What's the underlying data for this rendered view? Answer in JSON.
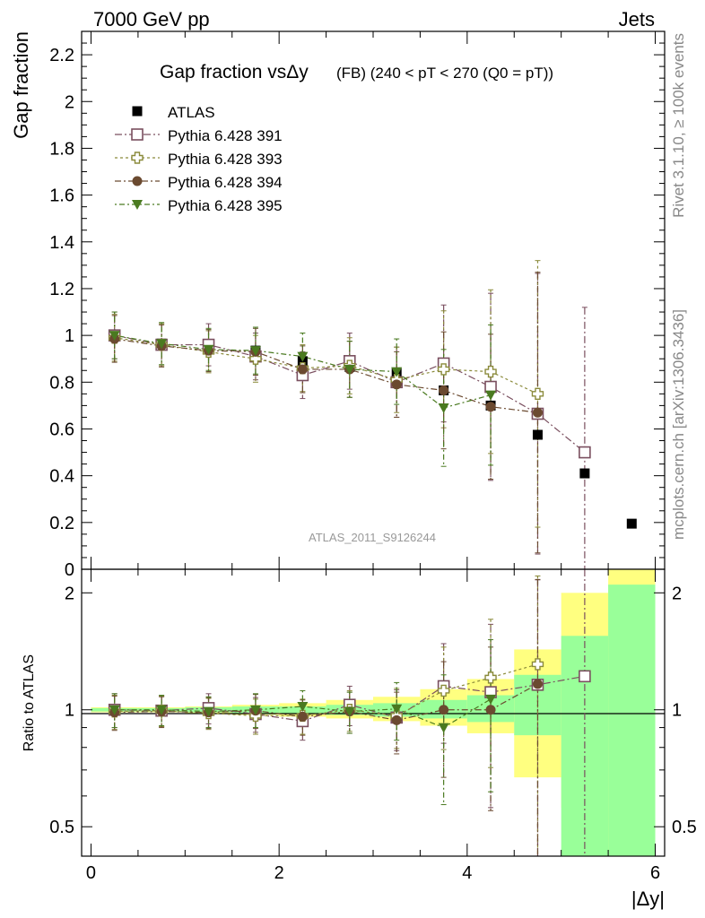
{
  "header": {
    "left": "7000 GeV pp",
    "right": "Jets"
  },
  "side_labels": {
    "rivet": "Rivet 3.1.10, ≥ 100k events",
    "mcplots": "mcplots.cern.ch [arXiv:1306.3436]"
  },
  "chart_data": {
    "type": "scatter",
    "title": "Gap fraction vsΔy",
    "title_suffix": "(FB) (240 < pT < 270 (Q0 = pT))",
    "analysis_label": "ATLAS_2011_S9126244",
    "xlabel": "|Δy|",
    "ylabel_main": "Gap fraction",
    "ylabel_ratio": "Ratio to ATLAS",
    "xlim": [
      -0.1,
      6.1
    ],
    "ylim_main": [
      0,
      2.3
    ],
    "ylim_ratio": [
      0.42,
      2.3
    ],
    "x_ticks": [
      "0",
      "2",
      "4",
      "6"
    ],
    "y_ticks_main": [
      "0",
      "0.2",
      "0.4",
      "0.6",
      "0.8",
      "1",
      "1.2",
      "1.4",
      "1.6",
      "1.8",
      "2",
      "2.2"
    ],
    "y_ticks_ratio": [
      "0.5",
      "1",
      "2"
    ],
    "x": [
      0.25,
      0.75,
      1.25,
      1.75,
      2.25,
      2.75,
      3.25,
      3.75,
      4.25,
      4.75,
      5.25,
      5.75
    ],
    "legend_position": "top-left",
    "bin_edges": [
      0,
      0.5,
      1,
      1.5,
      2,
      2.5,
      3,
      3.5,
      4,
      4.5,
      5,
      5.5,
      6
    ],
    "data_series": {
      "name": "ATLAS",
      "color": "#000000",
      "values": [
        1.0,
        0.965,
        0.95,
        0.935,
        0.89,
        0.865,
        0.84,
        0.765,
        0.7,
        0.575,
        0.41,
        0.195
      ]
    },
    "ratio_bands": {
      "green_lo": [
        0.99,
        0.99,
        0.985,
        0.98,
        0.98,
        0.97,
        0.96,
        0.95,
        0.93,
        0.86,
        0.42,
        0.42
      ],
      "green_hi": [
        1.01,
        1.01,
        1.015,
        1.02,
        1.02,
        1.03,
        1.04,
        1.06,
        1.09,
        1.23,
        1.55,
        2.1
      ],
      "yellow_lo": [
        0.985,
        0.985,
        0.98,
        0.97,
        0.96,
        0.95,
        0.935,
        0.91,
        0.87,
        0.67,
        0.56,
        0.42
      ],
      "yellow_hi": [
        1.015,
        1.015,
        1.02,
        1.03,
        1.04,
        1.06,
        1.08,
        1.13,
        1.2,
        1.43,
        2.0,
        2.3
      ],
      "green_color": "#99ff99",
      "yellow_color": "#ffff80"
    },
    "series": [
      {
        "name": "Pythia 6.428 391",
        "color": "#7a4f5f",
        "marker": "open-square",
        "x": [
          0.25,
          0.75,
          1.25,
          1.75,
          2.25,
          2.75,
          3.25,
          3.75,
          4.25,
          4.75,
          5.25
        ],
        "values": [
          1.0,
          0.96,
          0.96,
          0.91,
          0.83,
          0.89,
          0.8,
          0.88,
          0.78,
          0.665,
          0.5
        ],
        "errors": [
          0.1,
          0.09,
          0.09,
          0.1,
          0.1,
          0.12,
          0.15,
          0.25,
          0.4,
          0.6,
          0.62
        ],
        "ratio": [
          1.0,
          0.995,
          1.01,
          0.975,
          0.935,
          1.03,
          0.955,
          1.15,
          1.11,
          1.16,
          1.22
        ],
        "ratio_errors": [
          0.1,
          0.09,
          0.09,
          0.1,
          0.1,
          0.12,
          0.17,
          0.33,
          0.55,
          1.0,
          1.5
        ]
      },
      {
        "name": "Pythia 6.428 393",
        "color": "#8a8a3a",
        "marker": "open-cross",
        "x": [
          0.25,
          0.75,
          1.25,
          1.75,
          2.25,
          2.75,
          3.25,
          3.75,
          4.25,
          4.75
        ],
        "values": [
          0.99,
          0.96,
          0.93,
          0.9,
          0.86,
          0.87,
          0.81,
          0.855,
          0.845,
          0.75
        ],
        "errors": [
          0.1,
          0.09,
          0.09,
          0.1,
          0.1,
          0.12,
          0.14,
          0.25,
          0.35,
          0.57
        ],
        "ratio": [
          0.99,
          0.995,
          0.98,
          0.965,
          0.965,
          1.0,
          0.965,
          1.12,
          1.21,
          1.31
        ],
        "ratio_errors": [
          0.1,
          0.09,
          0.09,
          0.1,
          0.1,
          0.12,
          0.17,
          0.33,
          0.5,
          0.9
        ]
      },
      {
        "name": "Pythia 6.428 394",
        "color": "#6b4a30",
        "marker": "filled-circle",
        "x": [
          0.25,
          0.75,
          1.25,
          1.75,
          2.25,
          2.75,
          3.25,
          3.75,
          4.25,
          4.75
        ],
        "values": [
          0.985,
          0.955,
          0.935,
          0.93,
          0.855,
          0.855,
          0.79,
          0.765,
          0.695,
          0.67
        ],
        "errors": [
          0.1,
          0.09,
          0.09,
          0.1,
          0.1,
          0.12,
          0.14,
          0.25,
          0.31,
          0.6
        ],
        "ratio": [
          0.985,
          0.99,
          0.985,
          0.995,
          0.96,
          0.99,
          0.94,
          1.0,
          1.0,
          1.165
        ],
        "ratio_errors": [
          0.1,
          0.09,
          0.09,
          0.1,
          0.1,
          0.12,
          0.17,
          0.33,
          0.45,
          1.0
        ]
      },
      {
        "name": "Pythia 6.428 395",
        "color": "#4a7a20",
        "marker": "filled-triangle-down",
        "x": [
          0.25,
          0.75,
          1.25,
          1.75,
          2.25,
          2.75,
          3.25,
          3.75,
          4.25
        ],
        "values": [
          1.0,
          0.965,
          0.94,
          0.935,
          0.91,
          0.855,
          0.845,
          0.69,
          0.745
        ],
        "errors": [
          0.1,
          0.09,
          0.09,
          0.1,
          0.1,
          0.12,
          0.14,
          0.25,
          0.3
        ],
        "ratio": [
          1.0,
          1.0,
          0.99,
          1.0,
          1.02,
          0.99,
          1.005,
          0.9,
          1.065
        ],
        "ratio_errors": [
          0.1,
          0.09,
          0.09,
          0.1,
          0.1,
          0.12,
          0.17,
          0.33,
          0.45
        ]
      }
    ]
  }
}
